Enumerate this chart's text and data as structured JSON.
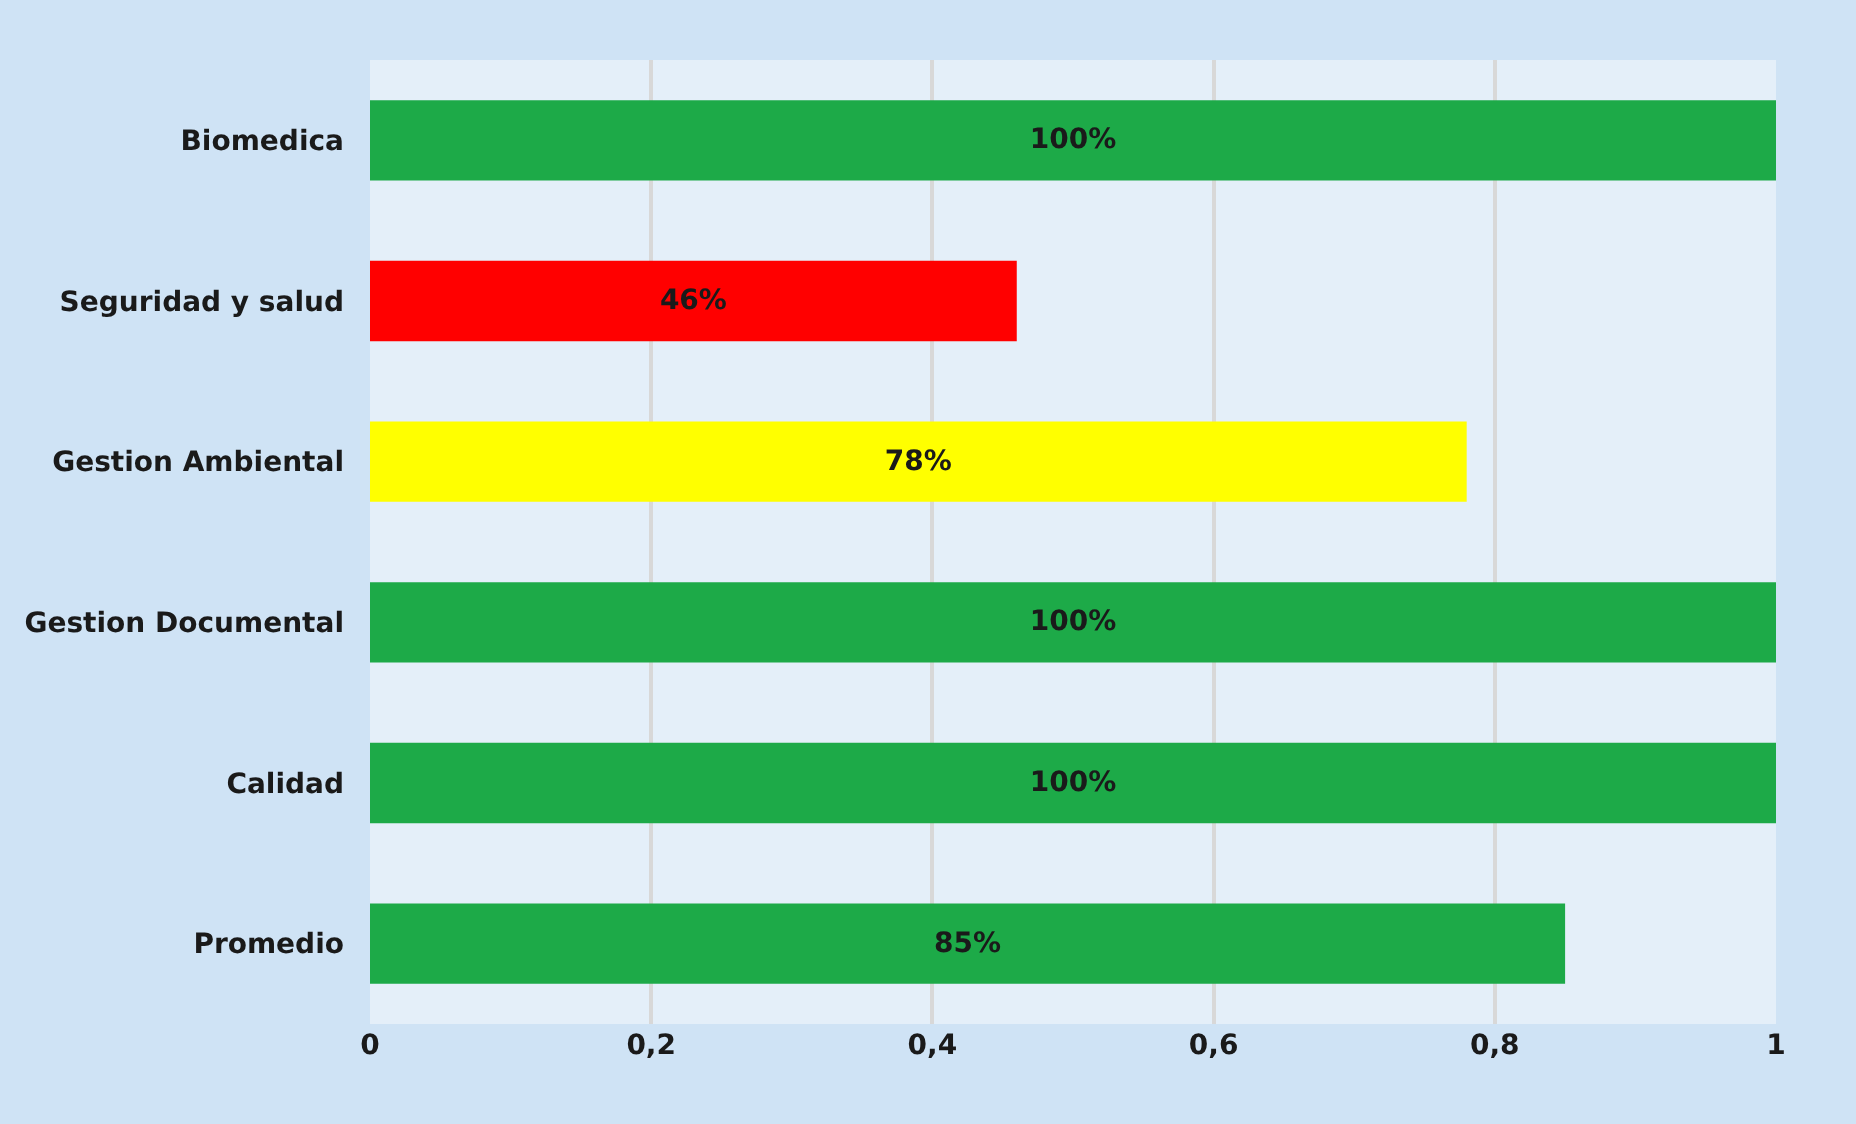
{
  "chart_data": {
    "type": "bar",
    "orientation": "horizontal",
    "categories": [
      "Biomedica",
      "Seguridad y salud",
      "Gestion Ambiental",
      "Gestion Documental",
      "Calidad",
      "Promedio"
    ],
    "values": [
      1,
      0.46,
      0.78,
      1,
      1,
      0.85
    ],
    "colors": [
      "#1daa48",
      "#ff0000",
      "#ffff00",
      "#1daa48",
      "#1daa48",
      "#1daa48"
    ],
    "value_labels": [
      "100%",
      "46%",
      "78%",
      "100%",
      "100%",
      "85%"
    ],
    "xlim": [
      0,
      1
    ],
    "xticks": [
      0,
      {
        "value": 0.2,
        "label": "0,2"
      },
      {
        "value": 0.4,
        "label": "0,4"
      },
      {
        "value": 0.6,
        "label": "0,6"
      },
      {
        "value": 0.8,
        "label": "0,8"
      },
      1
    ],
    "grid": "x",
    "legend": false
  }
}
